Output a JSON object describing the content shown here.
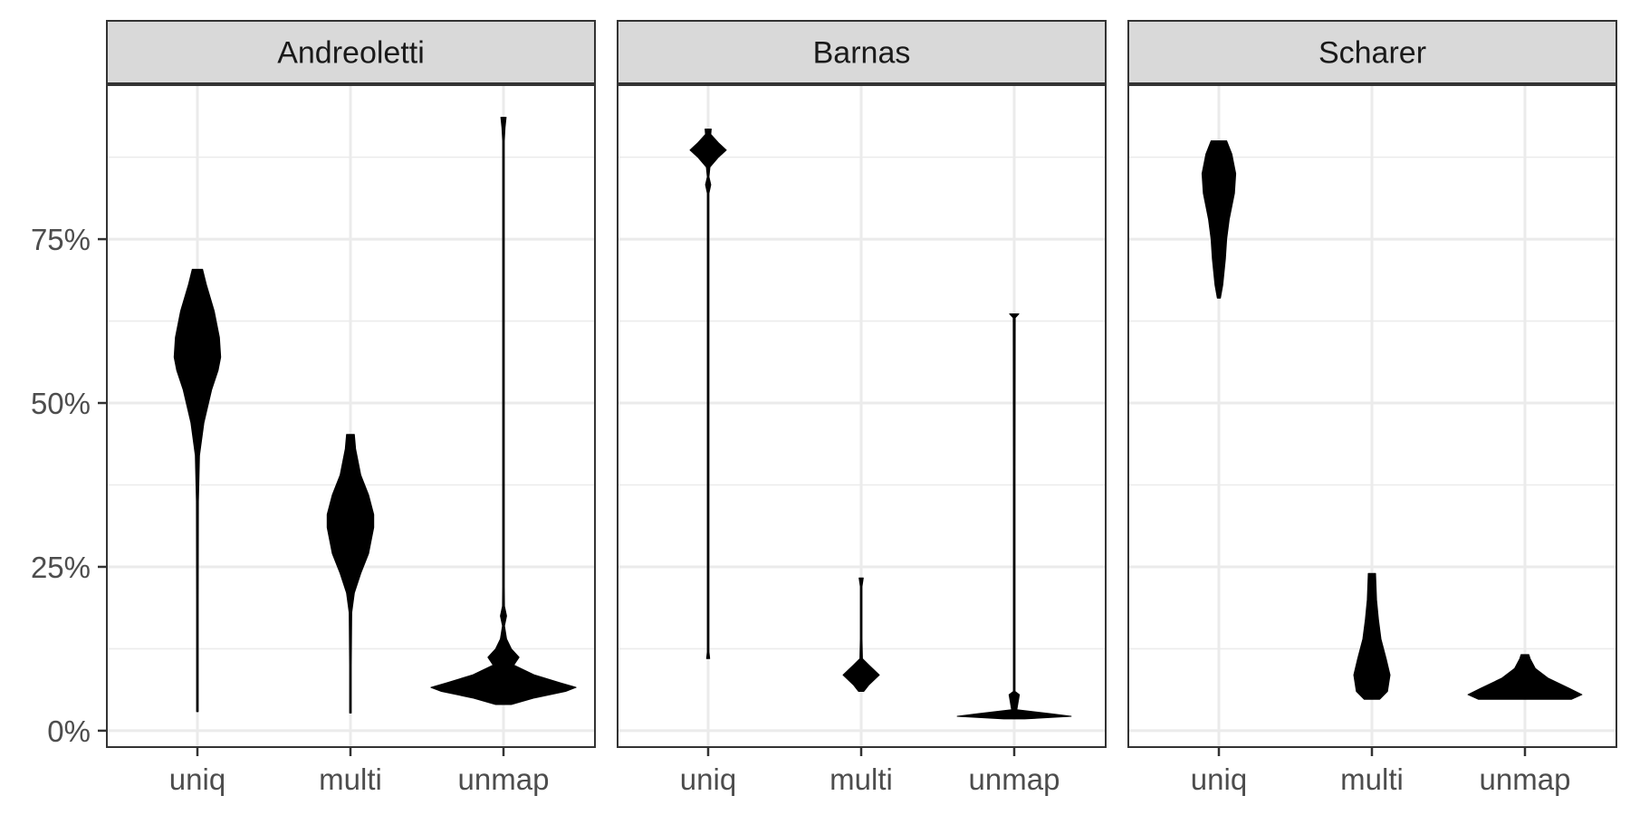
{
  "chart_data": {
    "type": "violin",
    "facets": [
      "Andreoletti",
      "Barnas",
      "Scharer"
    ],
    "categories": [
      "uniq",
      "multi",
      "unmap"
    ],
    "y_ticks": [
      0,
      25,
      50,
      75
    ],
    "y_tick_labels": [
      "0%",
      "25%",
      "50%",
      "75%"
    ],
    "ylim": [
      -2.5,
      98.5
    ],
    "grid": true,
    "colors": {
      "fill": "#000000",
      "strip_bg": "#d9d9d9",
      "grid": "#ebebeb",
      "border": "#333333"
    },
    "violins": [
      {
        "facet": "Andreoletti",
        "category": "uniq",
        "profile": [
          [
            2.9,
            0.3
          ],
          [
            20,
            0.3
          ],
          [
            35,
            0.4
          ],
          [
            42,
            0.8
          ],
          [
            47,
            2.5
          ],
          [
            52,
            5.5
          ],
          [
            55,
            8
          ],
          [
            57,
            9
          ],
          [
            60,
            8.5
          ],
          [
            64,
            6.5
          ],
          [
            68,
            3.5
          ],
          [
            70.4,
            2
          ]
        ]
      },
      {
        "facet": "Andreoletti",
        "category": "multi",
        "profile": [
          [
            2.7,
            0.3
          ],
          [
            10,
            0.3
          ],
          [
            18,
            0.5
          ],
          [
            21,
            1.5
          ],
          [
            24,
            4
          ],
          [
            27,
            7
          ],
          [
            31,
            9
          ],
          [
            33,
            9
          ],
          [
            36,
            7
          ],
          [
            39,
            4
          ],
          [
            43,
            2
          ],
          [
            45.2,
            1.5
          ]
        ]
      },
      {
        "facet": "Andreoletti",
        "category": "unmap",
        "profile": [
          [
            4,
            3
          ],
          [
            5,
            12
          ],
          [
            6,
            24
          ],
          [
            6.6,
            28
          ],
          [
            7.3,
            22
          ],
          [
            8.5,
            12
          ],
          [
            10,
            4
          ],
          [
            11.2,
            6
          ],
          [
            12.5,
            3
          ],
          [
            14,
            1.2
          ],
          [
            16,
            0.4
          ],
          [
            17.5,
            1.2
          ],
          [
            19,
            0.4
          ],
          [
            22,
            0.3
          ],
          [
            90,
            0.3
          ],
          [
            92,
            0.6
          ],
          [
            93.6,
            1
          ]
        ]
      },
      {
        "facet": "Barnas",
        "category": "uniq",
        "profile": [
          [
            11,
            0.6
          ],
          [
            12,
            0.3
          ],
          [
            50,
            0.3
          ],
          [
            82,
            0.3
          ],
          [
            83.3,
            1
          ],
          [
            84.5,
            0.3
          ],
          [
            86,
            0.7
          ],
          [
            87.5,
            4
          ],
          [
            88.6,
            7
          ],
          [
            89.7,
            4
          ],
          [
            91,
            1
          ],
          [
            91.8,
            1.2
          ]
        ]
      },
      {
        "facet": "Barnas",
        "category": "multi",
        "profile": [
          [
            6,
            1
          ],
          [
            7,
            3
          ],
          [
            8.5,
            7
          ],
          [
            10,
            3
          ],
          [
            11,
            0.5
          ],
          [
            14,
            0.3
          ],
          [
            22,
            0.3
          ],
          [
            23.3,
            0.8
          ]
        ]
      },
      {
        "facet": "Barnas",
        "category": "unmap",
        "profile": [
          [
            1.8,
            4
          ],
          [
            2.2,
            22
          ],
          [
            2.6,
            14
          ],
          [
            3.2,
            1
          ],
          [
            5.5,
            2
          ],
          [
            6,
            0.3
          ],
          [
            40,
            0.3
          ],
          [
            63,
            0.4
          ],
          [
            63.6,
            1.8
          ]
        ]
      },
      {
        "facet": "Scharer",
        "category": "uniq",
        "profile": [
          [
            66,
            0.6
          ],
          [
            68,
            1.5
          ],
          [
            72,
            2.5
          ],
          [
            75,
            3
          ],
          [
            78,
            4
          ],
          [
            82,
            6
          ],
          [
            85,
            6.5
          ],
          [
            88,
            5
          ],
          [
            90,
            3
          ]
        ]
      },
      {
        "facet": "Scharer",
        "category": "multi",
        "profile": [
          [
            4.8,
            3
          ],
          [
            6,
            6
          ],
          [
            8.5,
            7
          ],
          [
            11,
            5.5
          ],
          [
            14,
            3.5
          ],
          [
            17,
            2.5
          ],
          [
            20,
            1.8
          ],
          [
            24,
            1.4
          ]
        ]
      },
      {
        "facet": "Scharer",
        "category": "unmap",
        "profile": [
          [
            4.8,
            18
          ],
          [
            5.5,
            22
          ],
          [
            6.5,
            17
          ],
          [
            8,
            9
          ],
          [
            9.5,
            4
          ],
          [
            11,
            2
          ],
          [
            11.6,
            1.5
          ]
        ]
      }
    ]
  }
}
